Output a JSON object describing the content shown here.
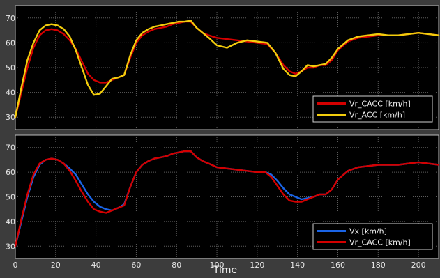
{
  "chart_data": [
    {
      "type": "line",
      "title": "",
      "xlabel": "",
      "ylabel": "",
      "xlim": [
        0,
        210
      ],
      "ylim": [
        25,
        75
      ],
      "xticks": [
        0,
        20,
        40,
        60,
        80,
        100,
        120,
        140,
        160,
        180,
        200
      ],
      "yticks": [
        30,
        40,
        50,
        60,
        70
      ],
      "grid": true,
      "legend": "bottom-right",
      "series": [
        {
          "name": "Vr_CACC [km/h]",
          "color": "#d40000",
          "x": [
            0,
            3,
            6,
            9,
            12,
            15,
            18,
            21,
            24,
            27,
            30,
            33,
            36,
            39,
            42,
            45,
            48,
            51,
            54,
            57,
            60,
            63,
            66,
            69,
            72,
            75,
            78,
            81,
            84,
            87,
            90,
            93,
            96,
            100,
            105,
            110,
            115,
            120,
            125,
            129,
            133,
            136,
            139,
            142,
            145,
            148,
            151,
            154,
            157,
            160,
            165,
            170,
            175,
            180,
            185,
            190,
            195,
            200,
            205,
            210
          ],
          "y": [
            30,
            40,
            50,
            58,
            63,
            65,
            65.5,
            65,
            63.5,
            61,
            57.5,
            52.5,
            47.5,
            45,
            44,
            44,
            45,
            46,
            47,
            54,
            60,
            63,
            64.5,
            65.5,
            66,
            66.5,
            67.5,
            68,
            68.5,
            68.5,
            66,
            64,
            63,
            62,
            61.5,
            61,
            60.5,
            60,
            59.5,
            56,
            51,
            48.5,
            47.5,
            48.5,
            50,
            50,
            51,
            51,
            53,
            57,
            60.5,
            62,
            62.5,
            63,
            63,
            63,
            63.5,
            64,
            63.5,
            63
          ]
        },
        {
          "name": "Vr_ACC [km/h]",
          "color": "#f2cc0c",
          "x": [
            0,
            3,
            6,
            9,
            12,
            15,
            18,
            21,
            24,
            27,
            30,
            33,
            36,
            39,
            42,
            45,
            48,
            51,
            54,
            57,
            60,
            63,
            66,
            69,
            72,
            75,
            78,
            81,
            84,
            87,
            90,
            93,
            96,
            100,
            105,
            110,
            115,
            120,
            125,
            129,
            133,
            136,
            139,
            142,
            145,
            148,
            151,
            154,
            157,
            160,
            165,
            170,
            175,
            180,
            185,
            190,
            195,
            200,
            205,
            210
          ],
          "y": [
            30,
            42,
            53,
            60,
            65,
            67,
            67.5,
            67,
            65.5,
            62.5,
            57,
            50,
            43,
            39,
            39.5,
            42.5,
            45.5,
            46,
            47,
            55,
            61,
            64,
            65.5,
            66.5,
            67,
            67.5,
            68,
            68.5,
            68.5,
            69,
            66,
            64,
            62,
            59,
            58,
            60,
            61,
            60.5,
            60,
            56,
            49.5,
            47,
            46.5,
            48.5,
            51,
            50.5,
            51,
            51.5,
            54,
            57.5,
            61,
            62.5,
            63,
            63.5,
            63,
            63,
            63.5,
            64,
            63.5,
            63
          ]
        }
      ]
    },
    {
      "type": "line",
      "title": "",
      "xlabel": "Time",
      "ylabel": "",
      "xlim": [
        0,
        210
      ],
      "ylim": [
        25,
        75
      ],
      "xticks": [
        0,
        20,
        40,
        60,
        80,
        100,
        120,
        140,
        160,
        180,
        200
      ],
      "yticks": [
        30,
        40,
        50,
        60,
        70
      ],
      "grid": true,
      "legend": "bottom-right",
      "series": [
        {
          "name": "Vx [km/h]",
          "color": "#1a64e6",
          "x": [
            0,
            3,
            6,
            9,
            12,
            15,
            18,
            21,
            24,
            27,
            30,
            33,
            36,
            39,
            42,
            45,
            48,
            51,
            54,
            57,
            60,
            63,
            66,
            69,
            72,
            75,
            78,
            81,
            84,
            87,
            90,
            93,
            96,
            100,
            105,
            110,
            115,
            120,
            124,
            127,
            130,
            133,
            136,
            139,
            142,
            145,
            148,
            151,
            154,
            157,
            160,
            165,
            170,
            175,
            180,
            185,
            190,
            195,
            200,
            205,
            210
          ],
          "y": [
            30,
            40,
            50,
            58,
            63,
            65,
            65.5,
            65,
            63.5,
            61.5,
            59,
            55,
            51,
            48,
            46,
            45,
            44.5,
            45.5,
            47,
            54,
            60,
            63,
            64.5,
            65.5,
            66,
            66.5,
            67.5,
            68,
            68.5,
            68.5,
            66,
            64.5,
            63.5,
            62,
            61.5,
            61,
            60.5,
            60,
            60,
            59,
            56.5,
            53.5,
            51,
            50,
            49,
            49.5,
            50,
            51,
            51,
            53,
            57,
            60.5,
            62,
            62.5,
            63,
            63,
            63,
            63.5,
            64,
            63.5,
            63
          ]
        },
        {
          "name": "Vr_CACC [km/h]",
          "color": "#d40000",
          "x": [
            0,
            3,
            6,
            9,
            12,
            15,
            18,
            21,
            24,
            27,
            30,
            33,
            36,
            39,
            42,
            45,
            48,
            51,
            54,
            57,
            60,
            63,
            66,
            69,
            72,
            75,
            78,
            81,
            84,
            87,
            90,
            93,
            96,
            100,
            105,
            110,
            115,
            120,
            124,
            127,
            130,
            133,
            136,
            139,
            142,
            145,
            148,
            151,
            154,
            157,
            160,
            165,
            170,
            175,
            180,
            185,
            190,
            195,
            200,
            205,
            210
          ],
          "y": [
            30,
            41,
            51,
            59,
            63.5,
            65,
            65.5,
            65,
            63.5,
            60.5,
            56.5,
            52,
            48,
            45,
            44,
            43.5,
            44.5,
            45.5,
            46.5,
            54,
            60,
            63,
            64.5,
            65.5,
            66,
            66.5,
            67.5,
            68,
            68.5,
            68.5,
            66,
            64.5,
            63.5,
            62,
            61.5,
            61,
            60.5,
            60,
            60,
            58,
            54.5,
            51,
            48.5,
            48,
            48,
            49,
            50,
            51,
            51,
            53,
            57,
            60.5,
            62,
            62.5,
            63,
            63,
            63,
            63.5,
            64,
            63.5,
            63
          ]
        }
      ]
    }
  ]
}
